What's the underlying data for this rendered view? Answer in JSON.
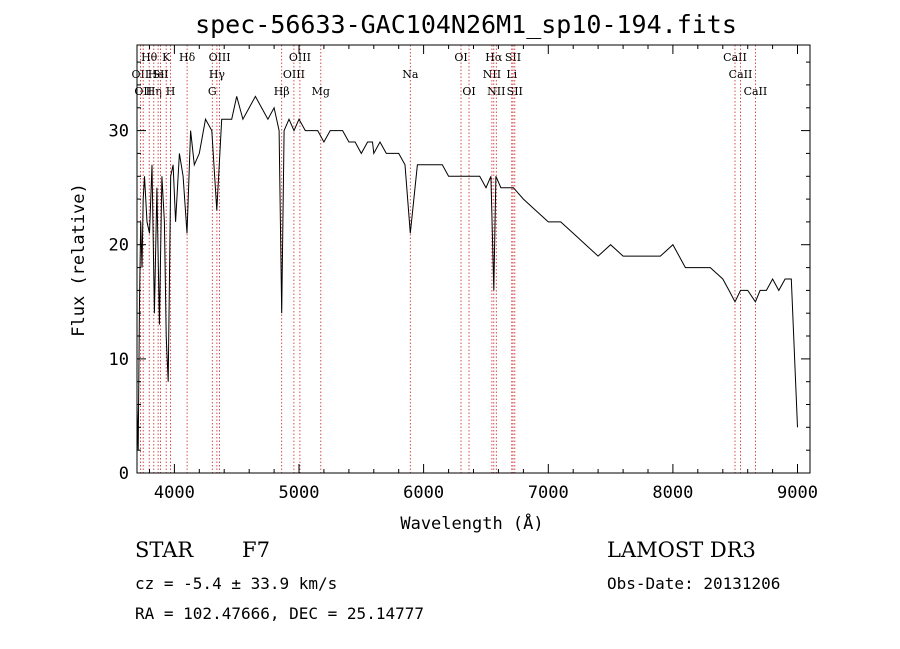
{
  "chart_data": {
    "type": "line",
    "title": "spec-56633-GAC104N26M1_sp10-194.fits",
    "xlabel": "Wavelength (Å)",
    "ylabel": "Flux (relative)",
    "xlim": [
      3700,
      9100
    ],
    "ylim": [
      0,
      37.5
    ],
    "xticks": [
      4000,
      5000,
      6000,
      7000,
      8000,
      9000
    ],
    "yticks": [
      0,
      10,
      20,
      30
    ],
    "x": [
      3700,
      3710,
      3720,
      3730,
      3740,
      3750,
      3760,
      3780,
      3800,
      3820,
      3840,
      3860,
      3880,
      3900,
      3920,
      3934,
      3950,
      3970,
      3990,
      4010,
      4040,
      4070,
      4101,
      4130,
      4160,
      4200,
      4250,
      4300,
      4340,
      4380,
      4420,
      4460,
      4500,
      4550,
      4600,
      4650,
      4700,
      4750,
      4800,
      4840,
      4861,
      4880,
      4920,
      4960,
      5000,
      5050,
      5100,
      5150,
      5200,
      5250,
      5300,
      5350,
      5400,
      5450,
      5500,
      5550,
      5590,
      5600,
      5650,
      5700,
      5750,
      5800,
      5850,
      5893,
      5950,
      6000,
      6050,
      6100,
      6150,
      6200,
      6250,
      6300,
      6350,
      6400,
      6450,
      6500,
      6540,
      6563,
      6580,
      6620,
      6680,
      6720,
      6800,
      6900,
      7000,
      7100,
      7200,
      7300,
      7400,
      7500,
      7600,
      7700,
      7800,
      7900,
      8000,
      8100,
      8200,
      8300,
      8400,
      8450,
      8498,
      8542,
      8600,
      8662,
      8700,
      8750,
      8800,
      8850,
      8900,
      8950,
      9000
    ],
    "values": [
      6,
      2,
      15,
      22,
      18,
      24,
      26,
      22,
      21,
      27,
      14,
      25,
      13,
      26,
      22,
      12,
      8,
      26,
      27,
      22,
      28,
      26,
      21,
      30,
      27,
      28,
      31,
      30,
      23,
      31,
      31,
      31,
      33,
      31,
      32,
      33,
      32,
      31,
      32,
      30,
      14,
      30,
      31,
      30,
      31,
      30,
      30,
      30,
      29,
      30,
      30,
      30,
      29,
      29,
      28,
      29,
      29,
      28,
      29,
      28,
      28,
      28,
      27,
      21,
      27,
      27,
      27,
      27,
      27,
      26,
      26,
      26,
      26,
      26,
      26,
      25,
      26,
      16,
      26,
      25,
      25,
      25,
      24,
      23,
      22,
      22,
      21,
      20,
      19,
      20,
      19,
      19,
      19,
      19,
      20,
      18,
      18,
      18,
      17,
      16,
      15,
      16,
      16,
      15,
      16,
      16,
      17,
      16,
      17,
      17,
      4
    ],
    "lines": [
      {
        "wavelength": 3727,
        "row": 2,
        "label": "OII"
      },
      {
        "wavelength": 3750,
        "row": 3,
        "label": "OII"
      },
      {
        "wavelength": 3798,
        "row": 1,
        "label": "Hθ"
      },
      {
        "wavelength": 3835,
        "row": 3,
        "label": "Hη"
      },
      {
        "wavelength": 3869,
        "row": 2,
        "label": "HeI"
      },
      {
        "wavelength": 3889,
        "row": 2,
        "label": "SII"
      },
      {
        "wavelength": 3934,
        "row": 1,
        "label": "K"
      },
      {
        "wavelength": 3969,
        "row": 3,
        "label": "H"
      },
      {
        "wavelength": 4102,
        "row": 1,
        "label": "Hδ"
      },
      {
        "wavelength": 4304,
        "row": 3,
        "label": "G"
      },
      {
        "wavelength": 4341,
        "row": 2,
        "label": "Hγ"
      },
      {
        "wavelength": 4363,
        "row": 1,
        "label": "OIII"
      },
      {
        "wavelength": 4861,
        "row": 3,
        "label": "Hβ"
      },
      {
        "wavelength": 4959,
        "row": 2,
        "label": "OIII"
      },
      {
        "wavelength": 5007,
        "row": 1,
        "label": "OIII"
      },
      {
        "wavelength": 5175,
        "row": 3,
        "label": "Mg"
      },
      {
        "wavelength": 5893,
        "row": 2,
        "label": "Na"
      },
      {
        "wavelength": 6300,
        "row": 1,
        "label": "OI"
      },
      {
        "wavelength": 6364,
        "row": 3,
        "label": "OI"
      },
      {
        "wavelength": 6548,
        "row": 2,
        "label": "NII"
      },
      {
        "wavelength": 6563,
        "row": 1,
        "label": "Hα"
      },
      {
        "wavelength": 6583,
        "row": 3,
        "label": "NII"
      },
      {
        "wavelength": 6707,
        "row": 2,
        "label": "Li"
      },
      {
        "wavelength": 6717,
        "row": 1,
        "label": "SII"
      },
      {
        "wavelength": 6731,
        "row": 3,
        "label": "SII"
      },
      {
        "wavelength": 8498,
        "row": 1,
        "label": "CaII"
      },
      {
        "wavelength": 8542,
        "row": 2,
        "label": "CaII"
      },
      {
        "wavelength": 8662,
        "row": 3,
        "label": "CaII"
      }
    ]
  },
  "colors": {
    "line_marker": "#cc2222",
    "spectrum": "#000000"
  },
  "info": {
    "class": "STAR",
    "subclass": "F7",
    "survey": "LAMOST DR3",
    "cz": "cz = -5.4 ± 33.9 km/s",
    "obs_date": "Obs-Date: 20131206",
    "coords": "RA = 102.47666, DEC =  25.14777"
  }
}
